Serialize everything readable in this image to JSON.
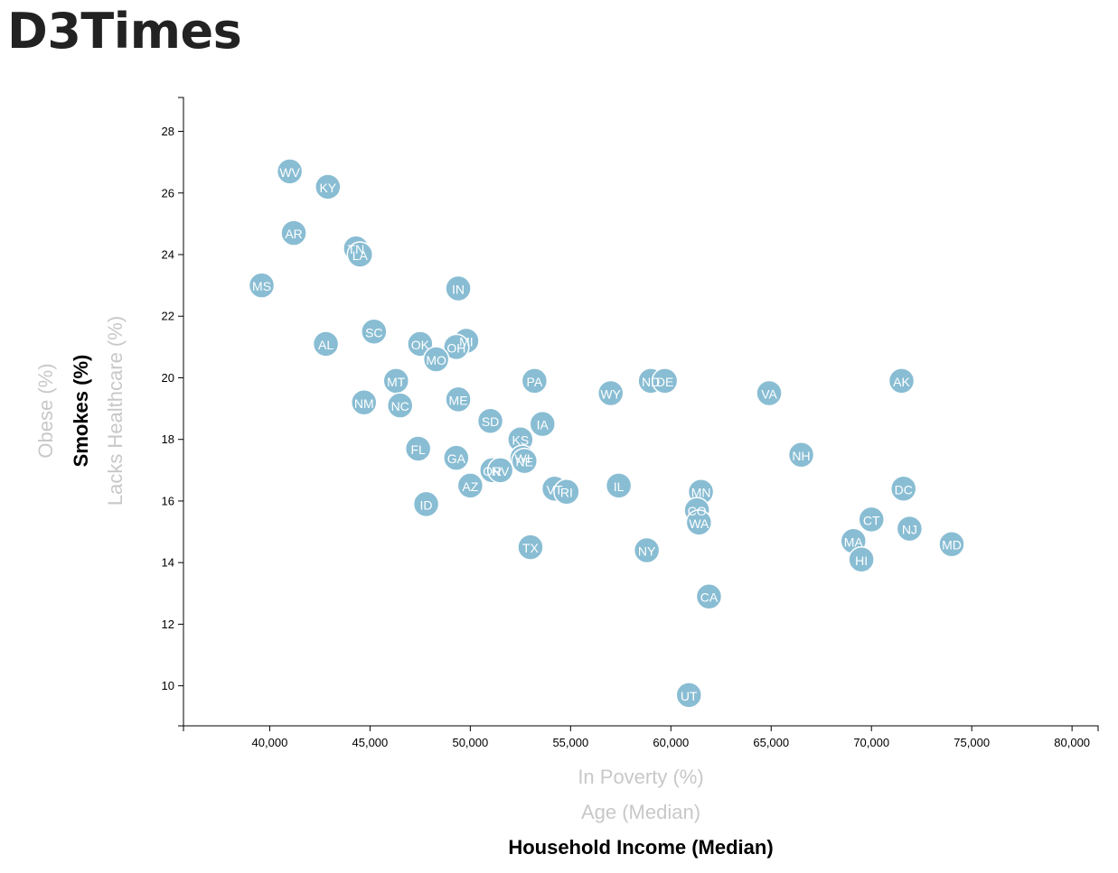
{
  "app": {
    "title": "D3Times"
  },
  "colors": {
    "point": "#89bdd3",
    "point_stroke": "#ffffff",
    "label_active": "#000000",
    "label_inactive": "#c8c8c8"
  },
  "axes": {
    "x_labels": [
      {
        "text": "In Poverty (%)",
        "active": false
      },
      {
        "text": "Age (Median)",
        "active": false
      },
      {
        "text": "Household Income (Median)",
        "active": true
      }
    ],
    "y_labels": [
      {
        "text": "Lacks Healthcare (%)",
        "active": false
      },
      {
        "text": "Smokes (%)",
        "active": true
      },
      {
        "text": "Obese (%)",
        "active": false
      }
    ]
  },
  "chart_data": {
    "type": "scatter",
    "title": "",
    "xlabel": "Household Income (Median)",
    "ylabel": "Smokes (%)",
    "xlim": [
      35700,
      81300
    ],
    "ylim": [
      8.7,
      29.1
    ],
    "x_ticks": [
      40000,
      45000,
      50000,
      55000,
      60000,
      65000,
      70000,
      75000,
      80000
    ],
    "x_tick_labels": [
      "40,000",
      "45,000",
      "50,000",
      "55,000",
      "60,000",
      "65,000",
      "70,000",
      "75,000",
      "80,000"
    ],
    "y_ticks": [
      10,
      12,
      14,
      16,
      18,
      20,
      22,
      24,
      26,
      28
    ],
    "y_tick_labels": [
      "10",
      "12",
      "14",
      "16",
      "18",
      "20",
      "22",
      "24",
      "26",
      "28"
    ],
    "points": [
      {
        "label": "WV",
        "x": 41000,
        "y": 26.7
      },
      {
        "label": "KY",
        "x": 42900,
        "y": 26.2
      },
      {
        "label": "AR",
        "x": 41200,
        "y": 24.7
      },
      {
        "label": "TN",
        "x": 44300,
        "y": 24.2
      },
      {
        "label": "LA",
        "x": 44500,
        "y": 24.0
      },
      {
        "label": "MS",
        "x": 39600,
        "y": 23.0
      },
      {
        "label": "IN",
        "x": 49400,
        "y": 22.9
      },
      {
        "label": "AL",
        "x": 42800,
        "y": 21.1
      },
      {
        "label": "SC",
        "x": 45200,
        "y": 21.5
      },
      {
        "label": "OK",
        "x": 47500,
        "y": 21.1
      },
      {
        "label": "MI",
        "x": 49800,
        "y": 21.2
      },
      {
        "label": "OH",
        "x": 49300,
        "y": 21.0
      },
      {
        "label": "MO",
        "x": 48300,
        "y": 20.6
      },
      {
        "label": "MT",
        "x": 46300,
        "y": 19.9
      },
      {
        "label": "PA",
        "x": 53200,
        "y": 19.9
      },
      {
        "label": "ND",
        "x": 59000,
        "y": 19.9
      },
      {
        "label": "DE",
        "x": 59700,
        "y": 19.9
      },
      {
        "label": "AK",
        "x": 71500,
        "y": 19.9
      },
      {
        "label": "WY",
        "x": 57000,
        "y": 19.5
      },
      {
        "label": "VA",
        "x": 64900,
        "y": 19.5
      },
      {
        "label": "NM",
        "x": 44700,
        "y": 19.2
      },
      {
        "label": "NC",
        "x": 46500,
        "y": 19.1
      },
      {
        "label": "ME",
        "x": 49400,
        "y": 19.3
      },
      {
        "label": "SD",
        "x": 51000,
        "y": 18.6
      },
      {
        "label": "IA",
        "x": 53600,
        "y": 18.5
      },
      {
        "label": "KS",
        "x": 52500,
        "y": 18.0
      },
      {
        "label": "FL",
        "x": 47400,
        "y": 17.7
      },
      {
        "label": "NH",
        "x": 66500,
        "y": 17.5
      },
      {
        "label": "GA",
        "x": 49300,
        "y": 17.4
      },
      {
        "label": "WI",
        "x": 52600,
        "y": 17.4
      },
      {
        "label": "NE",
        "x": 52700,
        "y": 17.3
      },
      {
        "label": "OR",
        "x": 51100,
        "y": 17.0
      },
      {
        "label": "NV",
        "x": 51500,
        "y": 17.0
      },
      {
        "label": "AZ",
        "x": 50000,
        "y": 16.5
      },
      {
        "label": "VT",
        "x": 54200,
        "y": 16.4
      },
      {
        "label": "RI",
        "x": 54800,
        "y": 16.3
      },
      {
        "label": "IL",
        "x": 57400,
        "y": 16.5
      },
      {
        "label": "MN",
        "x": 61500,
        "y": 16.3
      },
      {
        "label": "DC",
        "x": 71600,
        "y": 16.4
      },
      {
        "label": "ID",
        "x": 47800,
        "y": 15.9
      },
      {
        "label": "CO",
        "x": 61300,
        "y": 15.7
      },
      {
        "label": "CT",
        "x": 70000,
        "y": 15.4
      },
      {
        "label": "WA",
        "x": 61400,
        "y": 15.3
      },
      {
        "label": "NJ",
        "x": 71900,
        "y": 15.1
      },
      {
        "label": "MA",
        "x": 69100,
        "y": 14.7
      },
      {
        "label": "MD",
        "x": 74000,
        "y": 14.6
      },
      {
        "label": "TX",
        "x": 53000,
        "y": 14.5
      },
      {
        "label": "NY",
        "x": 58800,
        "y": 14.4
      },
      {
        "label": "HI",
        "x": 69500,
        "y": 14.1
      },
      {
        "label": "CA",
        "x": 61900,
        "y": 12.9
      },
      {
        "label": "UT",
        "x": 60900,
        "y": 9.7
      }
    ]
  }
}
